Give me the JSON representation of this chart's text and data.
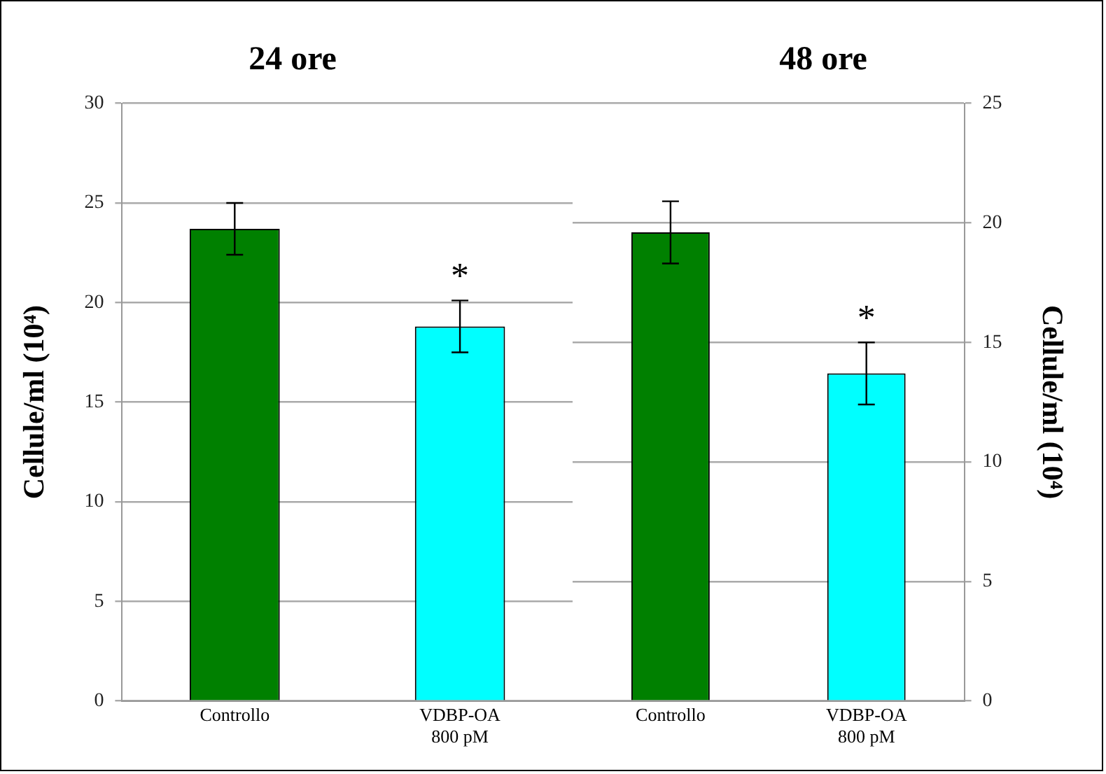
{
  "chart_data": [
    {
      "type": "bar",
      "title": "24 ore",
      "ylabel": "Cellule/ml (10⁴)",
      "categories": [
        "Controllo",
        "VDBP-OA\n800 pM"
      ],
      "series": [
        {
          "values": [
            23.7,
            18.8
          ],
          "colors": [
            "#008000",
            "#00ffff"
          ],
          "errors": [
            1.3,
            1.3
          ]
        }
      ],
      "ylim": [
        0,
        30
      ],
      "yticks": [
        0,
        5,
        10,
        15,
        20,
        25,
        30
      ],
      "grid": "y",
      "legend": false,
      "annotations": [
        "*"
      ]
    },
    {
      "type": "bar",
      "title": "48 ore",
      "y2label": "Cellule/ml (10⁴)",
      "categories": [
        "Controllo",
        "VDBP-OA\n800 pM"
      ],
      "series": [
        {
          "values": [
            19.6,
            13.7
          ],
          "colors": [
            "#008000",
            "#00ffff"
          ],
          "errors": [
            1.3,
            1.3
          ],
          "axis": "y2"
        }
      ],
      "y2lim": [
        0,
        25
      ],
      "y2ticks": [
        0,
        5,
        10,
        15,
        20,
        25
      ],
      "grid": "y",
      "legend": false,
      "annotations": [
        "*"
      ]
    }
  ]
}
